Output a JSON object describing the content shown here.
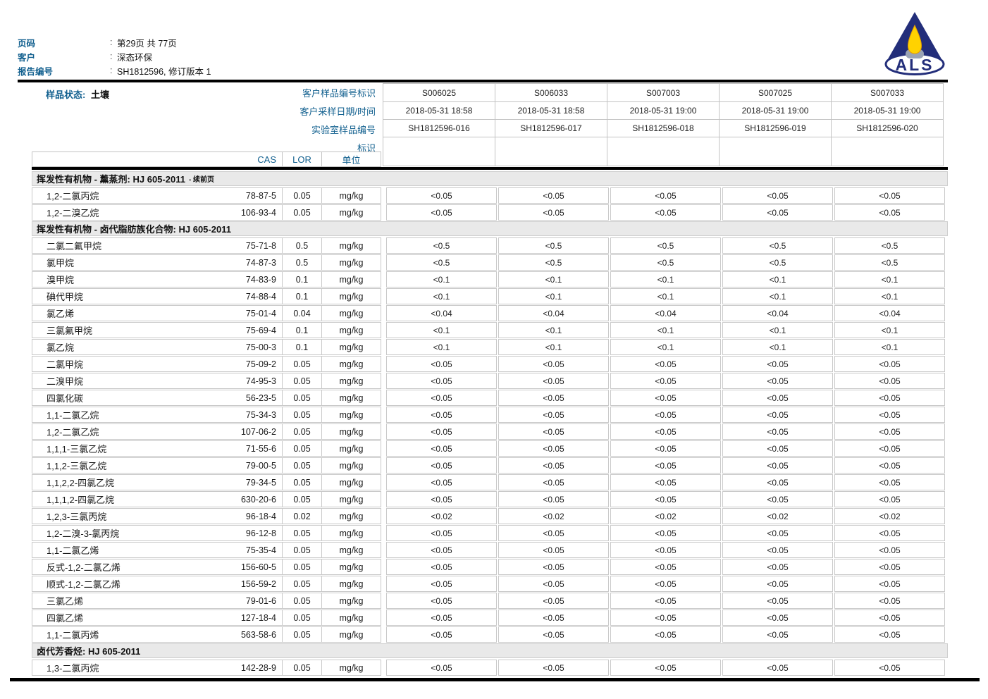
{
  "colors": {
    "accent_blue": "#12608f",
    "logo_navy": "#232e7a",
    "logo_flame_yellow": "#ffd200",
    "logo_candle_gray": "#9aa3b5",
    "section_band_gray": "#e9e9e9",
    "grid_border_gray": "#c9c9c9"
  },
  "logo": {
    "text": "ALS"
  },
  "meta": {
    "colon": ":",
    "page_label": "页码",
    "page_value": "第29页 共 77页",
    "client_label": "客户",
    "client_value": "深态环保",
    "report_label": "报告编号",
    "report_value": "SH1812596, 修订版本 1"
  },
  "sample_info": {
    "matrix_label": "样品状态:",
    "matrix_value": "土壤",
    "row_labels": [
      "客户样品编号标识",
      "客户采样日期/时间",
      "实验室样品编号",
      "标识"
    ],
    "columns": [
      {
        "client_id": "S006025",
        "datetime": "2018-05-31 18:58",
        "lab_id": "SH1812596-016",
        "mark": ""
      },
      {
        "client_id": "S006033",
        "datetime": "2018-05-31 18:58",
        "lab_id": "SH1812596-017",
        "mark": ""
      },
      {
        "client_id": "S007003",
        "datetime": "2018-05-31 19:00",
        "lab_id": "SH1812596-018",
        "mark": ""
      },
      {
        "client_id": "S007025",
        "datetime": "2018-05-31 19:00",
        "lab_id": "SH1812596-019",
        "mark": ""
      },
      {
        "client_id": "S007033",
        "datetime": "2018-05-31 19:00",
        "lab_id": "SH1812596-020",
        "mark": ""
      }
    ]
  },
  "table": {
    "headers": {
      "cas": "CAS",
      "lor": "LOR",
      "unit": "单位"
    },
    "sections": [
      {
        "title": "挥发性有机物 - 薰蒸剂: HJ 605-2011",
        "suffix": "- 续前页",
        "rows": [
          {
            "name": "1,2-二氯丙烷",
            "cas": "78-87-5",
            "lor": "0.05",
            "unit": "mg/kg",
            "results": [
              "<0.05",
              "<0.05",
              "<0.05",
              "<0.05",
              "<0.05"
            ]
          },
          {
            "name": "1,2-二溴乙烷",
            "cas": "106-93-4",
            "lor": "0.05",
            "unit": "mg/kg",
            "results": [
              "<0.05",
              "<0.05",
              "<0.05",
              "<0.05",
              "<0.05"
            ]
          }
        ]
      },
      {
        "title": "挥发性有机物 - 卤代脂肪族化合物: HJ 605-2011",
        "suffix": "",
        "rows": [
          {
            "name": "二氯二氟甲烷",
            "cas": "75-71-8",
            "lor": "0.5",
            "unit": "mg/kg",
            "results": [
              "<0.5",
              "<0.5",
              "<0.5",
              "<0.5",
              "<0.5"
            ]
          },
          {
            "name": "氯甲烷",
            "cas": "74-87-3",
            "lor": "0.5",
            "unit": "mg/kg",
            "results": [
              "<0.5",
              "<0.5",
              "<0.5",
              "<0.5",
              "<0.5"
            ]
          },
          {
            "name": "溴甲烷",
            "cas": "74-83-9",
            "lor": "0.1",
            "unit": "mg/kg",
            "results": [
              "<0.1",
              "<0.1",
              "<0.1",
              "<0.1",
              "<0.1"
            ]
          },
          {
            "name": "碘代甲烷",
            "cas": "74-88-4",
            "lor": "0.1",
            "unit": "mg/kg",
            "results": [
              "<0.1",
              "<0.1",
              "<0.1",
              "<0.1",
              "<0.1"
            ]
          },
          {
            "name": "氯乙烯",
            "cas": "75-01-4",
            "lor": "0.04",
            "unit": "mg/kg",
            "results": [
              "<0.04",
              "<0.04",
              "<0.04",
              "<0.04",
              "<0.04"
            ]
          },
          {
            "name": "三氯氟甲烷",
            "cas": "75-69-4",
            "lor": "0.1",
            "unit": "mg/kg",
            "results": [
              "<0.1",
              "<0.1",
              "<0.1",
              "<0.1",
              "<0.1"
            ]
          },
          {
            "name": "氯乙烷",
            "cas": "75-00-3",
            "lor": "0.1",
            "unit": "mg/kg",
            "results": [
              "<0.1",
              "<0.1",
              "<0.1",
              "<0.1",
              "<0.1"
            ]
          },
          {
            "name": "二氯甲烷",
            "cas": "75-09-2",
            "lor": "0.05",
            "unit": "mg/kg",
            "results": [
              "<0.05",
              "<0.05",
              "<0.05",
              "<0.05",
              "<0.05"
            ]
          },
          {
            "name": "二溴甲烷",
            "cas": "74-95-3",
            "lor": "0.05",
            "unit": "mg/kg",
            "results": [
              "<0.05",
              "<0.05",
              "<0.05",
              "<0.05",
              "<0.05"
            ]
          },
          {
            "name": "四氯化碳",
            "cas": "56-23-5",
            "lor": "0.05",
            "unit": "mg/kg",
            "results": [
              "<0.05",
              "<0.05",
              "<0.05",
              "<0.05",
              "<0.05"
            ]
          },
          {
            "name": "1,1-二氯乙烷",
            "cas": "75-34-3",
            "lor": "0.05",
            "unit": "mg/kg",
            "results": [
              "<0.05",
              "<0.05",
              "<0.05",
              "<0.05",
              "<0.05"
            ]
          },
          {
            "name": "1,2-二氯乙烷",
            "cas": "107-06-2",
            "lor": "0.05",
            "unit": "mg/kg",
            "results": [
              "<0.05",
              "<0.05",
              "<0.05",
              "<0.05",
              "<0.05"
            ]
          },
          {
            "name": "1,1,1-三氯乙烷",
            "cas": "71-55-6",
            "lor": "0.05",
            "unit": "mg/kg",
            "results": [
              "<0.05",
              "<0.05",
              "<0.05",
              "<0.05",
              "<0.05"
            ]
          },
          {
            "name": "1,1,2-三氯乙烷",
            "cas": "79-00-5",
            "lor": "0.05",
            "unit": "mg/kg",
            "results": [
              "<0.05",
              "<0.05",
              "<0.05",
              "<0.05",
              "<0.05"
            ]
          },
          {
            "name": "1,1,2,2-四氯乙烷",
            "cas": "79-34-5",
            "lor": "0.05",
            "unit": "mg/kg",
            "results": [
              "<0.05",
              "<0.05",
              "<0.05",
              "<0.05",
              "<0.05"
            ]
          },
          {
            "name": "1,1,1,2-四氯乙烷",
            "cas": "630-20-6",
            "lor": "0.05",
            "unit": "mg/kg",
            "results": [
              "<0.05",
              "<0.05",
              "<0.05",
              "<0.05",
              "<0.05"
            ]
          },
          {
            "name": "1,2,3-三氯丙烷",
            "cas": "96-18-4",
            "lor": "0.02",
            "unit": "mg/kg",
            "results": [
              "<0.02",
              "<0.02",
              "<0.02",
              "<0.02",
              "<0.02"
            ]
          },
          {
            "name": "1,2-二溴-3-氯丙烷",
            "cas": "96-12-8",
            "lor": "0.05",
            "unit": "mg/kg",
            "results": [
              "<0.05",
              "<0.05",
              "<0.05",
              "<0.05",
              "<0.05"
            ]
          },
          {
            "name": "1,1-二氯乙烯",
            "cas": "75-35-4",
            "lor": "0.05",
            "unit": "mg/kg",
            "results": [
              "<0.05",
              "<0.05",
              "<0.05",
              "<0.05",
              "<0.05"
            ]
          },
          {
            "name": "反式-1,2-二氯乙烯",
            "cas": "156-60-5",
            "lor": "0.05",
            "unit": "mg/kg",
            "results": [
              "<0.05",
              "<0.05",
              "<0.05",
              "<0.05",
              "<0.05"
            ]
          },
          {
            "name": "顺式-1,2-二氯乙烯",
            "cas": "156-59-2",
            "lor": "0.05",
            "unit": "mg/kg",
            "results": [
              "<0.05",
              "<0.05",
              "<0.05",
              "<0.05",
              "<0.05"
            ]
          },
          {
            "name": "三氯乙烯",
            "cas": "79-01-6",
            "lor": "0.05",
            "unit": "mg/kg",
            "results": [
              "<0.05",
              "<0.05",
              "<0.05",
              "<0.05",
              "<0.05"
            ]
          },
          {
            "name": "四氯乙烯",
            "cas": "127-18-4",
            "lor": "0.05",
            "unit": "mg/kg",
            "results": [
              "<0.05",
              "<0.05",
              "<0.05",
              "<0.05",
              "<0.05"
            ]
          },
          {
            "name": "1,1-二氯丙烯",
            "cas": "563-58-6",
            "lor": "0.05",
            "unit": "mg/kg",
            "results": [
              "<0.05",
              "<0.05",
              "<0.05",
              "<0.05",
              "<0.05"
            ]
          }
        ]
      },
      {
        "title": "卤代芳香烃: HJ 605-2011",
        "suffix": "",
        "rows": [
          {
            "name": "1,3-二氯丙烷",
            "cas": "142-28-9",
            "lor": "0.05",
            "unit": "mg/kg",
            "results": [
              "<0.05",
              "<0.05",
              "<0.05",
              "<0.05",
              "<0.05"
            ]
          }
        ]
      }
    ]
  }
}
